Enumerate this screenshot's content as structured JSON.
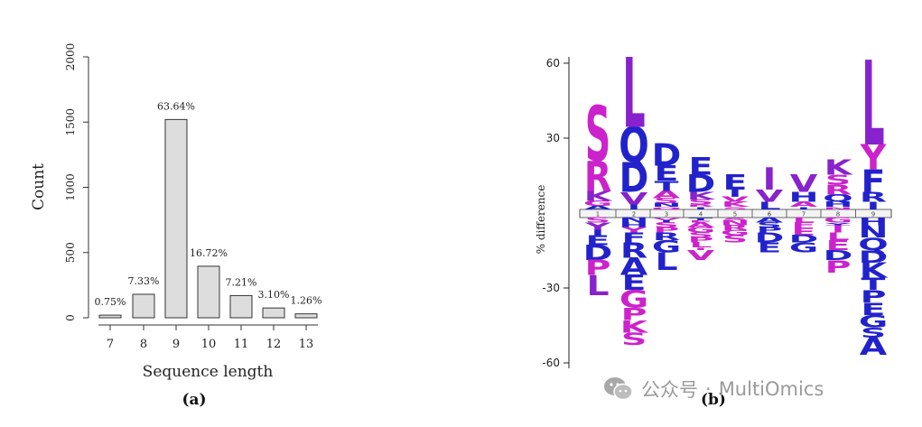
{
  "panel_a": {
    "caption": "(a)",
    "chart_data": {
      "type": "bar",
      "categories": [
        "7",
        "8",
        "9",
        "10",
        "11",
        "12",
        "13"
      ],
      "values": [
        20,
        180,
        1520,
        395,
        170,
        75,
        30
      ],
      "data_labels": [
        "0.75%",
        "7.33%",
        "63.64%",
        "16.72%",
        "7.21%",
        "3.10%",
        "1.26%"
      ],
      "xlabel": "Sequence length",
      "ylabel": "Count",
      "ylim": [
        0,
        2000
      ],
      "yticks": [
        "0",
        "500",
        "1000",
        "1500",
        "2000"
      ],
      "bar_color": "#dddddd",
      "grid": false
    }
  },
  "panel_b": {
    "caption": "(b)",
    "chart_data": {
      "type": "sequence-logo",
      "ylabel": "% difference",
      "ylim": [
        -60,
        60
      ],
      "yticks": [
        "60",
        "30",
        "-30",
        "-60"
      ],
      "colors": {
        "purple": "#cc22cc",
        "blue": "#2222cc",
        "violet": "#8822cc"
      },
      "positions": [
        {
          "position": 1,
          "enriched": [
            {
              "letter": "S",
              "value": 22,
              "color": "purple"
            },
            {
              "letter": "R",
              "value": 12,
              "color": "purple"
            },
            {
              "letter": "K",
              "value": 4,
              "color": "violet"
            },
            {
              "letter": "G",
              "value": 2,
              "color": "purple"
            },
            {
              "letter": "A",
              "value": 1.5,
              "color": "blue"
            }
          ],
          "depleted": [
            {
              "letter": "S",
              "value": 2,
              "color": "purple"
            },
            {
              "letter": "Y",
              "value": 3,
              "color": "violet"
            },
            {
              "letter": "I",
              "value": 2,
              "color": "blue"
            },
            {
              "letter": "E",
              "value": 4,
              "color": "blue"
            },
            {
              "letter": "D",
              "value": 6,
              "color": "blue"
            },
            {
              "letter": "P",
              "value": 6,
              "color": "purple"
            },
            {
              "letter": "L",
              "value": 8,
              "color": "violet"
            }
          ]
        },
        {
          "position": 2,
          "enriched": [
            {
              "letter": "L",
              "value": 28,
              "color": "violet"
            },
            {
              "letter": "Q",
              "value": 14,
              "color": "blue"
            },
            {
              "letter": "D",
              "value": 12,
              "color": "blue"
            },
            {
              "letter": "V",
              "value": 5,
              "color": "violet"
            },
            {
              "letter": "I",
              "value": 2,
              "color": "blue"
            }
          ],
          "depleted": [
            {
              "letter": "N",
              "value": 2,
              "color": "blue"
            },
            {
              "letter": "H",
              "value": 2,
              "color": "blue"
            },
            {
              "letter": "Y",
              "value": 2,
              "color": "purple"
            },
            {
              "letter": "F",
              "value": 4,
              "color": "blue"
            },
            {
              "letter": "R",
              "value": 6,
              "color": "blue"
            },
            {
              "letter": "A",
              "value": 7,
              "color": "blue"
            },
            {
              "letter": "E",
              "value": 6,
              "color": "blue"
            },
            {
              "letter": "G",
              "value": 7,
              "color": "purple"
            },
            {
              "letter": "P",
              "value": 5,
              "color": "purple"
            },
            {
              "letter": "K",
              "value": 5,
              "color": "purple"
            },
            {
              "letter": "S",
              "value": 5,
              "color": "purple"
            }
          ]
        },
        {
          "position": 3,
          "enriched": [
            {
              "letter": "D",
              "value": 9,
              "color": "blue"
            },
            {
              "letter": "E",
              "value": 6,
              "color": "blue"
            },
            {
              "letter": "T",
              "value": 4,
              "color": "blue"
            },
            {
              "letter": "A",
              "value": 3,
              "color": "purple"
            },
            {
              "letter": "S",
              "value": 2,
              "color": "purple"
            },
            {
              "letter": "N",
              "value": 1.5,
              "color": "blue"
            },
            {
              "letter": "Q",
              "value": 1,
              "color": "purple"
            }
          ],
          "depleted": [
            {
              "letter": "V",
              "value": 1,
              "color": "purple"
            },
            {
              "letter": "I",
              "value": 1,
              "color": "blue"
            },
            {
              "letter": "S",
              "value": 2,
              "color": "purple"
            },
            {
              "letter": "P",
              "value": 2,
              "color": "purple"
            },
            {
              "letter": "R",
              "value": 3,
              "color": "blue"
            },
            {
              "letter": "G",
              "value": 5,
              "color": "blue"
            },
            {
              "letter": "L",
              "value": 7,
              "color": "blue"
            }
          ]
        },
        {
          "position": 4,
          "enriched": [
            {
              "letter": "E",
              "value": 7,
              "color": "blue"
            },
            {
              "letter": "D",
              "value": 7,
              "color": "blue"
            },
            {
              "letter": "K",
              "value": 3,
              "color": "violet"
            },
            {
              "letter": "S",
              "value": 2,
              "color": "purple"
            },
            {
              "letter": "R",
              "value": 1,
              "color": "purple"
            },
            {
              "letter": "I",
              "value": 1,
              "color": "blue"
            }
          ],
          "depleted": [
            {
              "letter": "T",
              "value": 1,
              "color": "blue"
            },
            {
              "letter": "F",
              "value": 1,
              "color": "purple"
            },
            {
              "letter": "A",
              "value": 2,
              "color": "purple"
            },
            {
              "letter": "G",
              "value": 2,
              "color": "purple"
            },
            {
              "letter": "S",
              "value": 2,
              "color": "purple"
            },
            {
              "letter": "P",
              "value": 2,
              "color": "purple"
            },
            {
              "letter": "L",
              "value": 2,
              "color": "purple"
            },
            {
              "letter": "I",
              "value": 1,
              "color": "purple"
            },
            {
              "letter": "V",
              "value": 4,
              "color": "purple"
            }
          ]
        },
        {
          "position": 5,
          "enriched": [
            {
              "letter": "E",
              "value": 6,
              "color": "blue"
            },
            {
              "letter": "I",
              "value": 3,
              "color": "blue"
            },
            {
              "letter": "V",
              "value": 2,
              "color": "purple"
            },
            {
              "letter": "K",
              "value": 2,
              "color": "purple"
            },
            {
              "letter": "S",
              "value": 1,
              "color": "purple"
            }
          ],
          "depleted": [
            {
              "letter": "S",
              "value": 1,
              "color": "purple"
            },
            {
              "letter": "N",
              "value": 2,
              "color": "purple"
            },
            {
              "letter": "R",
              "value": 2,
              "color": "purple"
            },
            {
              "letter": "G",
              "value": 2,
              "color": "purple"
            },
            {
              "letter": "S",
              "value": 3,
              "color": "purple"
            }
          ]
        },
        {
          "position": 6,
          "enriched": [
            {
              "letter": "I",
              "value": 9,
              "color": "violet"
            },
            {
              "letter": "V",
              "value": 5,
              "color": "violet"
            },
            {
              "letter": "L",
              "value": 3,
              "color": "blue"
            }
          ],
          "depleted": [
            {
              "letter": "A",
              "value": 2,
              "color": "blue"
            },
            {
              "letter": "S",
              "value": 2,
              "color": "blue"
            },
            {
              "letter": "P",
              "value": 2,
              "color": "blue"
            },
            {
              "letter": "D",
              "value": 4,
              "color": "blue"
            },
            {
              "letter": "E",
              "value": 4,
              "color": "blue"
            }
          ]
        },
        {
          "position": 7,
          "enriched": [
            {
              "letter": "V",
              "value": 7,
              "color": "violet"
            },
            {
              "letter": "H",
              "value": 4,
              "color": "blue"
            },
            {
              "letter": "A",
              "value": 2,
              "color": "purple"
            },
            {
              "letter": "I",
              "value": 1,
              "color": "blue"
            }
          ],
          "depleted": [
            {
              "letter": "L",
              "value": 2,
              "color": "purple"
            },
            {
              "letter": "F",
              "value": 2,
              "color": "purple"
            },
            {
              "letter": "E",
              "value": 3,
              "color": "purple"
            },
            {
              "letter": "D",
              "value": 3,
              "color": "blue"
            },
            {
              "letter": "G",
              "value": 4,
              "color": "blue"
            }
          ]
        },
        {
          "position": 8,
          "enriched": [
            {
              "letter": "K",
              "value": 6,
              "color": "violet"
            },
            {
              "letter": "S",
              "value": 4,
              "color": "purple"
            },
            {
              "letter": "R",
              "value": 4,
              "color": "purple"
            },
            {
              "letter": "Q",
              "value": 3,
              "color": "blue"
            },
            {
              "letter": "H",
              "value": 2,
              "color": "blue"
            },
            {
              "letter": "N",
              "value": 1,
              "color": "purple"
            }
          ],
          "depleted": [
            {
              "letter": "G",
              "value": 2,
              "color": "purple"
            },
            {
              "letter": "Y",
              "value": 1,
              "color": "blue"
            },
            {
              "letter": "T",
              "value": 1,
              "color": "purple"
            },
            {
              "letter": "I",
              "value": 2,
              "color": "purple"
            },
            {
              "letter": "L",
              "value": 3,
              "color": "purple"
            },
            {
              "letter": "E",
              "value": 4,
              "color": "purple"
            },
            {
              "letter": "D",
              "value": 4,
              "color": "blue"
            },
            {
              "letter": "P",
              "value": 5,
              "color": "purple"
            }
          ]
        },
        {
          "position": 9,
          "enriched": [
            {
              "letter": "L",
              "value": 34,
              "color": "violet"
            },
            {
              "letter": "Y",
              "value": 10,
              "color": "purple"
            },
            {
              "letter": "F",
              "value": 9,
              "color": "blue"
            },
            {
              "letter": "R",
              "value": 4,
              "color": "blue"
            },
            {
              "letter": "I",
              "value": 3,
              "color": "blue"
            }
          ],
          "depleted": [
            {
              "letter": "H",
              "value": 3,
              "color": "blue"
            },
            {
              "letter": "N",
              "value": 5,
              "color": "blue"
            },
            {
              "letter": "Q",
              "value": 5,
              "color": "blue"
            },
            {
              "letter": "D",
              "value": 5,
              "color": "blue"
            },
            {
              "letter": "K",
              "value": 6,
              "color": "blue"
            },
            {
              "letter": "T",
              "value": 5,
              "color": "blue"
            },
            {
              "letter": "P",
              "value": 5,
              "color": "blue"
            },
            {
              "letter": "E",
              "value": 5,
              "color": "blue"
            },
            {
              "letter": "G",
              "value": 5,
              "color": "blue"
            },
            {
              "letter": "S",
              "value": 4,
              "color": "blue"
            },
            {
              "letter": "A",
              "value": 7,
              "color": "blue"
            }
          ]
        }
      ]
    }
  },
  "watermark": {
    "text_cn": "公众号",
    "separator": "·",
    "text_en": "MultiOmics",
    "icon": "wechat-icon"
  }
}
